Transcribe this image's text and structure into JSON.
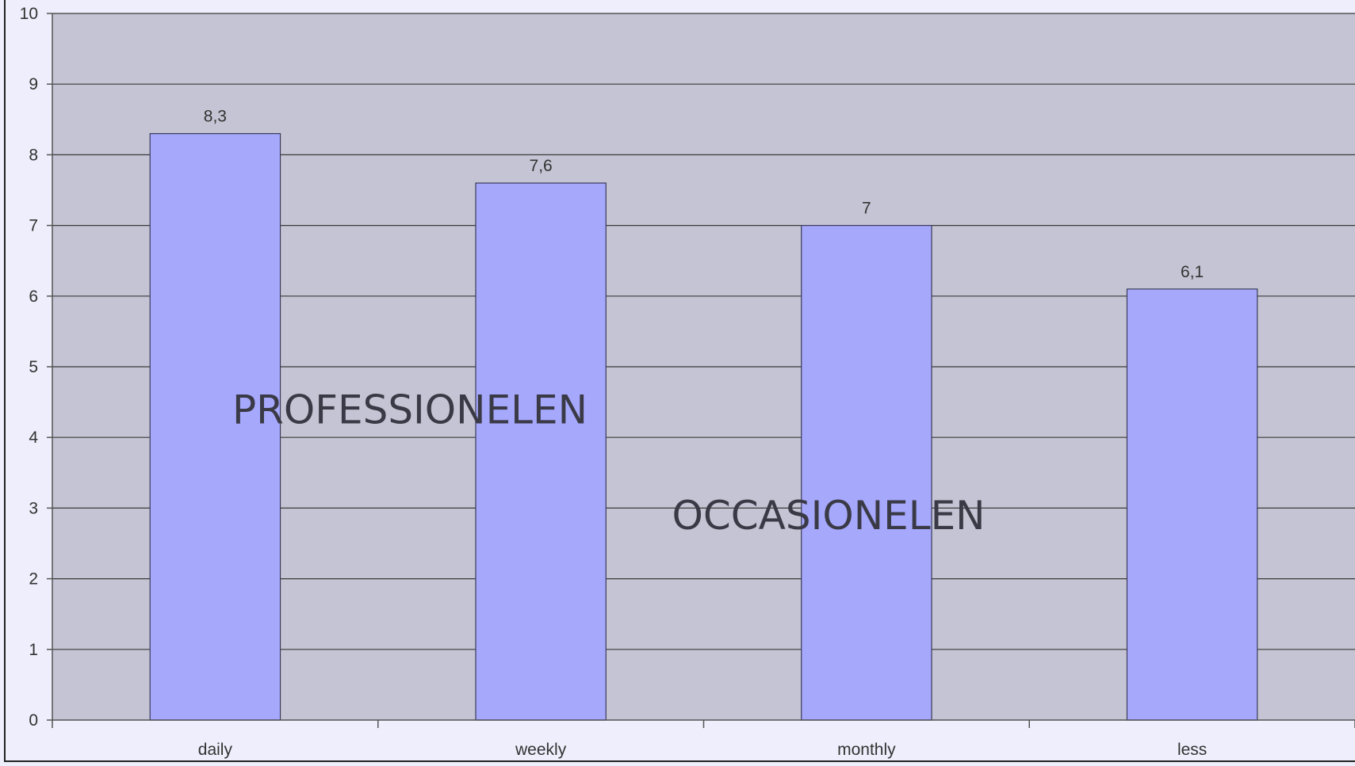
{
  "chart_data": {
    "type": "bar",
    "categories": [
      "daily",
      "weekly",
      "monthly",
      "less"
    ],
    "values": [
      8.3,
      7.6,
      7,
      6.1
    ],
    "data_labels": [
      "8,3",
      "7,6",
      "7",
      "6,1"
    ],
    "title": "",
    "xlabel": "",
    "ylabel": "",
    "ylim": [
      0,
      10
    ],
    "y_ticks": [
      0,
      1,
      2,
      3,
      4,
      5,
      6,
      7,
      8,
      9,
      10
    ],
    "grid": true,
    "legend": "none",
    "annotations": [
      {
        "text": "PROFESSIONELEN",
        "x": 1.35,
        "y": 4.2
      },
      {
        "text": "OCCASIONELEN",
        "x": 2.7,
        "y": 2.7
      }
    ],
    "colors": {
      "bar_fill": "#a6a8fc",
      "bar_stroke": "#3b3b5a",
      "plot_background": "#c4c4d4",
      "page_background": "#eeeefc",
      "grid_line": "#3a3a3a",
      "axis_line": "#555555",
      "text": "#333333"
    }
  }
}
